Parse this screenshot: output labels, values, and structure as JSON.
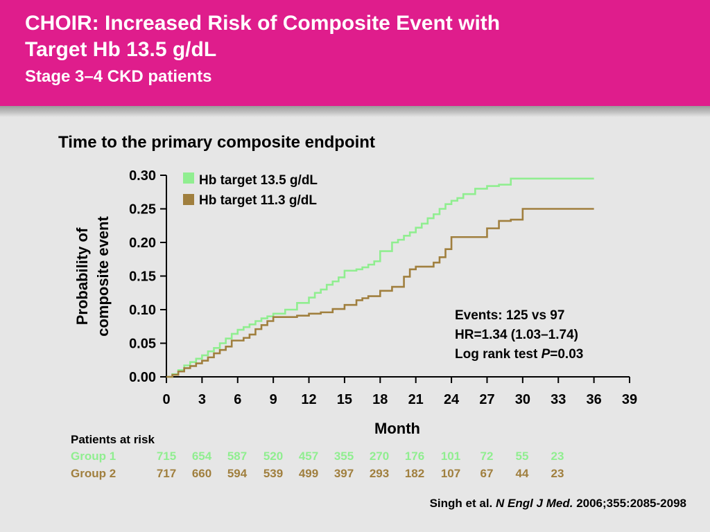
{
  "header": {
    "title_line1": "CHOIR: Increased Risk of Composite Event with",
    "title_line2": "Target Hb 13.5 g/dL",
    "subtitle": "Stage 3–4 CKD patients"
  },
  "colors": {
    "banner": "#df1d8c",
    "group1": "#90ee90",
    "group2": "#a07f3e",
    "background": "#e6e6e6"
  },
  "chart_data": {
    "type": "line",
    "title": "Time to the primary composite endpoint",
    "xlabel": "Month",
    "ylabel_line1": "Probability of",
    "ylabel_line2": "composite event",
    "xlim": [
      0,
      39
    ],
    "ylim": [
      0,
      0.3
    ],
    "xticks": [
      0,
      3,
      6,
      9,
      12,
      15,
      18,
      21,
      24,
      27,
      30,
      33,
      36,
      39
    ],
    "yticks": [
      "0.00",
      "0.05",
      "0.10",
      "0.15",
      "0.20",
      "0.25",
      "0.30"
    ],
    "grid": false,
    "legend_position": "top-left",
    "series": [
      {
        "name": "Hb target 13.5 g/dL",
        "color": "#90ee90",
        "x": [
          0,
          0.5,
          1,
          1.5,
          2,
          2.5,
          3,
          3.5,
          4,
          4.5,
          5,
          5.5,
          6,
          6.5,
          7,
          7.5,
          8,
          8.5,
          9,
          10,
          11,
          12,
          12.5,
          13,
          13.5,
          14,
          14.5,
          15,
          16,
          16.5,
          17,
          17.5,
          18,
          19,
          19.5,
          20,
          20.5,
          21,
          21.5,
          22,
          22.5,
          23,
          23.5,
          24,
          24.5,
          25,
          26,
          27,
          28,
          29,
          30,
          31,
          32,
          33,
          34,
          35,
          36
        ],
        "y": [
          0,
          0.004,
          0.01,
          0.017,
          0.022,
          0.027,
          0.032,
          0.038,
          0.043,
          0.05,
          0.057,
          0.064,
          0.07,
          0.074,
          0.078,
          0.083,
          0.087,
          0.09,
          0.094,
          0.1,
          0.11,
          0.118,
          0.125,
          0.13,
          0.137,
          0.142,
          0.148,
          0.158,
          0.16,
          0.163,
          0.167,
          0.172,
          0.187,
          0.2,
          0.204,
          0.21,
          0.215,
          0.222,
          0.228,
          0.236,
          0.242,
          0.25,
          0.257,
          0.262,
          0.266,
          0.272,
          0.28,
          0.284,
          0.286,
          0.295,
          0.295,
          0.295,
          0.295,
          0.295,
          0.295,
          0.295,
          0.295
        ]
      },
      {
        "name": "Hb target 11.3 g/dL",
        "color": "#a07f3e",
        "x": [
          0,
          0.5,
          1,
          1.5,
          2,
          2.5,
          3,
          3.5,
          4,
          4.5,
          5,
          5.5,
          6,
          6.5,
          7,
          7.5,
          8,
          8.5,
          9,
          10,
          11,
          12,
          13,
          14,
          15,
          16,
          16.5,
          17,
          18,
          19,
          20,
          20.5,
          21,
          22,
          22.5,
          23,
          23.5,
          24,
          25,
          26,
          27,
          28,
          29,
          30,
          31,
          32,
          33,
          34,
          35,
          36
        ],
        "y": [
          0,
          0.003,
          0.008,
          0.013,
          0.016,
          0.02,
          0.024,
          0.029,
          0.035,
          0.04,
          0.045,
          0.054,
          0.054,
          0.058,
          0.063,
          0.071,
          0.077,
          0.083,
          0.089,
          0.089,
          0.091,
          0.094,
          0.096,
          0.101,
          0.107,
          0.114,
          0.117,
          0.12,
          0.128,
          0.134,
          0.149,
          0.16,
          0.164,
          0.164,
          0.17,
          0.178,
          0.19,
          0.208,
          0.208,
          0.208,
          0.221,
          0.232,
          0.234,
          0.25,
          0.25,
          0.25,
          0.25,
          0.25,
          0.25,
          0.25
        ]
      }
    ],
    "annotations": {
      "events": "Events: 125 vs 97",
      "hr": "HR=1.34 (1.03–1.74)",
      "logrank_prefix": "Log rank test ",
      "logrank_p": "P",
      "logrank_value": "=0.03"
    }
  },
  "patients_at_risk": {
    "label": "Patients at risk",
    "groups": [
      {
        "name": "Group 1",
        "color": "#90ee90",
        "values": [
          "715",
          "654",
          "587",
          "520",
          "457",
          "355",
          "270",
          "176",
          "101",
          "72",
          "55",
          "23"
        ]
      },
      {
        "name": "Group 2",
        "color": "#a07f3e",
        "values": [
          "717",
          "660",
          "594",
          "539",
          "499",
          "397",
          "293",
          "182",
          "107",
          "67",
          "44",
          "23"
        ]
      }
    ]
  },
  "citation": {
    "authors": "Singh et al. ",
    "journal": "N Engl J Med.",
    "ref": " 2006;355:2085-2098"
  }
}
